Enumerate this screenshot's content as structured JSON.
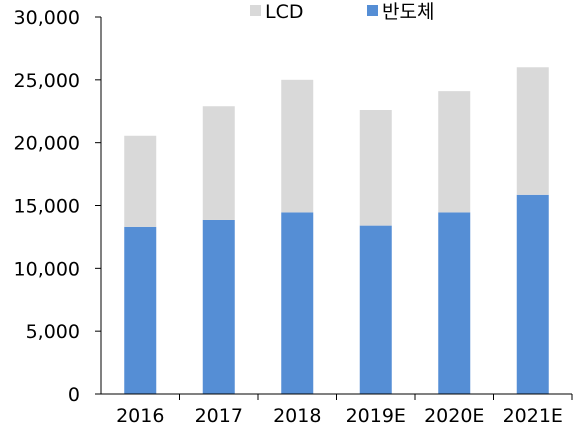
{
  "chart_data": {
    "type": "bar",
    "stacked": true,
    "categories": [
      "2016",
      "2017",
      "2018",
      "2019E",
      "2020E",
      "2021E"
    ],
    "series": [
      {
        "name": "반도체",
        "color": "#558ED5",
        "values": [
          13300,
          13850,
          14450,
          13400,
          14450,
          15850
        ]
      },
      {
        "name": "LCD",
        "color": "#D9D9D9",
        "values": [
          7250,
          9050,
          10550,
          9200,
          9650,
          10150
        ]
      }
    ],
    "ylim": [
      0,
      30000
    ],
    "yticks": [
      0,
      5000,
      10000,
      15000,
      20000,
      25000,
      30000
    ],
    "ytick_labels": [
      "0",
      "5,000",
      "10,000",
      "15,000",
      "20,000",
      "25,000",
      "30,000"
    ],
    "grid": false,
    "legend": {
      "position": "top",
      "order": [
        "LCD",
        "반도체"
      ]
    },
    "title": "",
    "xlabel": "",
    "ylabel": ""
  }
}
